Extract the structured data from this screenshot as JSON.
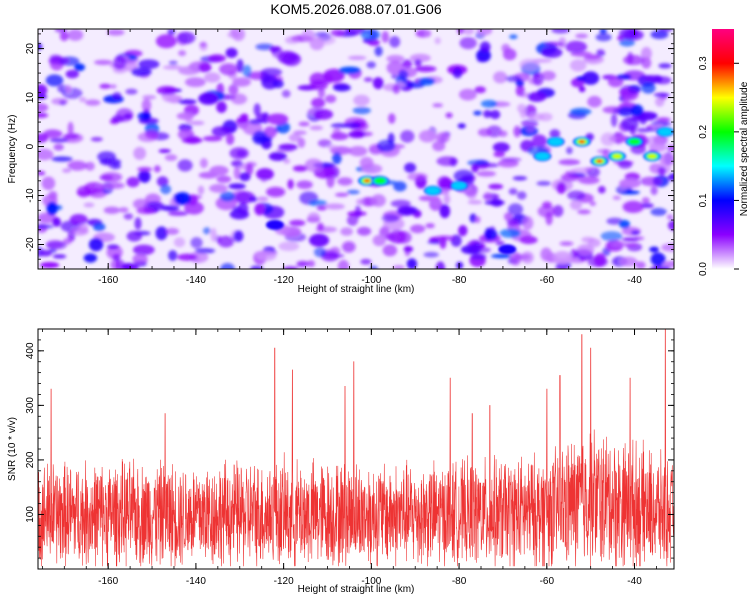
{
  "figure": {
    "title": "KOM5.2026.088.07.01.G06"
  },
  "chart_data": [
    {
      "type": "heatmap",
      "xlabel": "Height of straight line (km)",
      "ylabel": "Frequency (Hz)",
      "xlim": [
        -176,
        -31
      ],
      "ylim": [
        -25,
        24
      ],
      "xticks": [
        -160,
        -140,
        -120,
        -100,
        -80,
        -60,
        -40
      ],
      "yticks": [
        -20,
        -10,
        0,
        10,
        20
      ],
      "colorbar": {
        "label": "Normalized spectral amplitude",
        "range": [
          0.0,
          0.35
        ],
        "ticks": [
          0.0,
          0.1,
          0.2,
          0.3
        ],
        "colormap": [
          "#ffffff",
          "#8b00ff",
          "#0000ff",
          "#00ffff",
          "#00ff00",
          "#ffff00",
          "#ff0000",
          "#ff0080"
        ]
      },
      "hotspots": [
        {
          "x": -101,
          "y": -7,
          "value": 0.32
        },
        {
          "x": -98,
          "y": -7,
          "value": 0.22
        },
        {
          "x": -80,
          "y": -8,
          "value": 0.18
        },
        {
          "x": -86,
          "y": -9,
          "value": 0.16
        },
        {
          "x": -52,
          "y": 1,
          "value": 0.3
        },
        {
          "x": -48,
          "y": -3,
          "value": 0.33
        },
        {
          "x": -44,
          "y": -2,
          "value": 0.28
        },
        {
          "x": -40,
          "y": 1,
          "value": 0.22
        },
        {
          "x": -36,
          "y": -2,
          "value": 0.26
        },
        {
          "x": -58,
          "y": 1,
          "value": 0.18
        },
        {
          "x": -61,
          "y": -2,
          "value": 0.15
        },
        {
          "x": -33,
          "y": 3,
          "value": 0.16
        },
        {
          "x": -69,
          "y": -21,
          "value": 0.12
        },
        {
          "x": -122,
          "y": -16,
          "value": 0.1
        }
      ]
    },
    {
      "type": "line",
      "xlabel": "Height of straight line (km)",
      "ylabel": "SNR (10 * v/v)",
      "xlim": [
        -176,
        -31
      ],
      "ylim": [
        0,
        440
      ],
      "xticks": [
        -160,
        -140,
        -120,
        -100,
        -80,
        -60,
        -40
      ],
      "yticks": [
        100,
        200,
        300,
        400
      ],
      "color": "#ee3333",
      "envelope": [
        {
          "x": -176,
          "mean": 100,
          "amp": 110
        },
        {
          "x": -160,
          "mean": 100,
          "amp": 110
        },
        {
          "x": -140,
          "mean": 100,
          "amp": 110
        },
        {
          "x": -120,
          "mean": 100,
          "amp": 115
        },
        {
          "x": -100,
          "mean": 100,
          "amp": 110
        },
        {
          "x": -80,
          "mean": 100,
          "amp": 110
        },
        {
          "x": -60,
          "mean": 105,
          "amp": 120
        },
        {
          "x": -50,
          "mean": 130,
          "amp": 150
        },
        {
          "x": -40,
          "mean": 115,
          "amp": 135
        },
        {
          "x": -31,
          "mean": 100,
          "amp": 110
        }
      ],
      "peaks": [
        {
          "x": -173,
          "y": 330
        },
        {
          "x": -147,
          "y": 285
        },
        {
          "x": -122,
          "y": 405
        },
        {
          "x": -118,
          "y": 365
        },
        {
          "x": -106,
          "y": 335
        },
        {
          "x": -104,
          "y": 380
        },
        {
          "x": -82,
          "y": 350
        },
        {
          "x": -77,
          "y": 285
        },
        {
          "x": -73,
          "y": 300
        },
        {
          "x": -60,
          "y": 330
        },
        {
          "x": -57,
          "y": 355
        },
        {
          "x": -52,
          "y": 430
        },
        {
          "x": -50,
          "y": 405
        },
        {
          "x": -41,
          "y": 350
        },
        {
          "x": -33,
          "y": 440
        }
      ]
    }
  ]
}
